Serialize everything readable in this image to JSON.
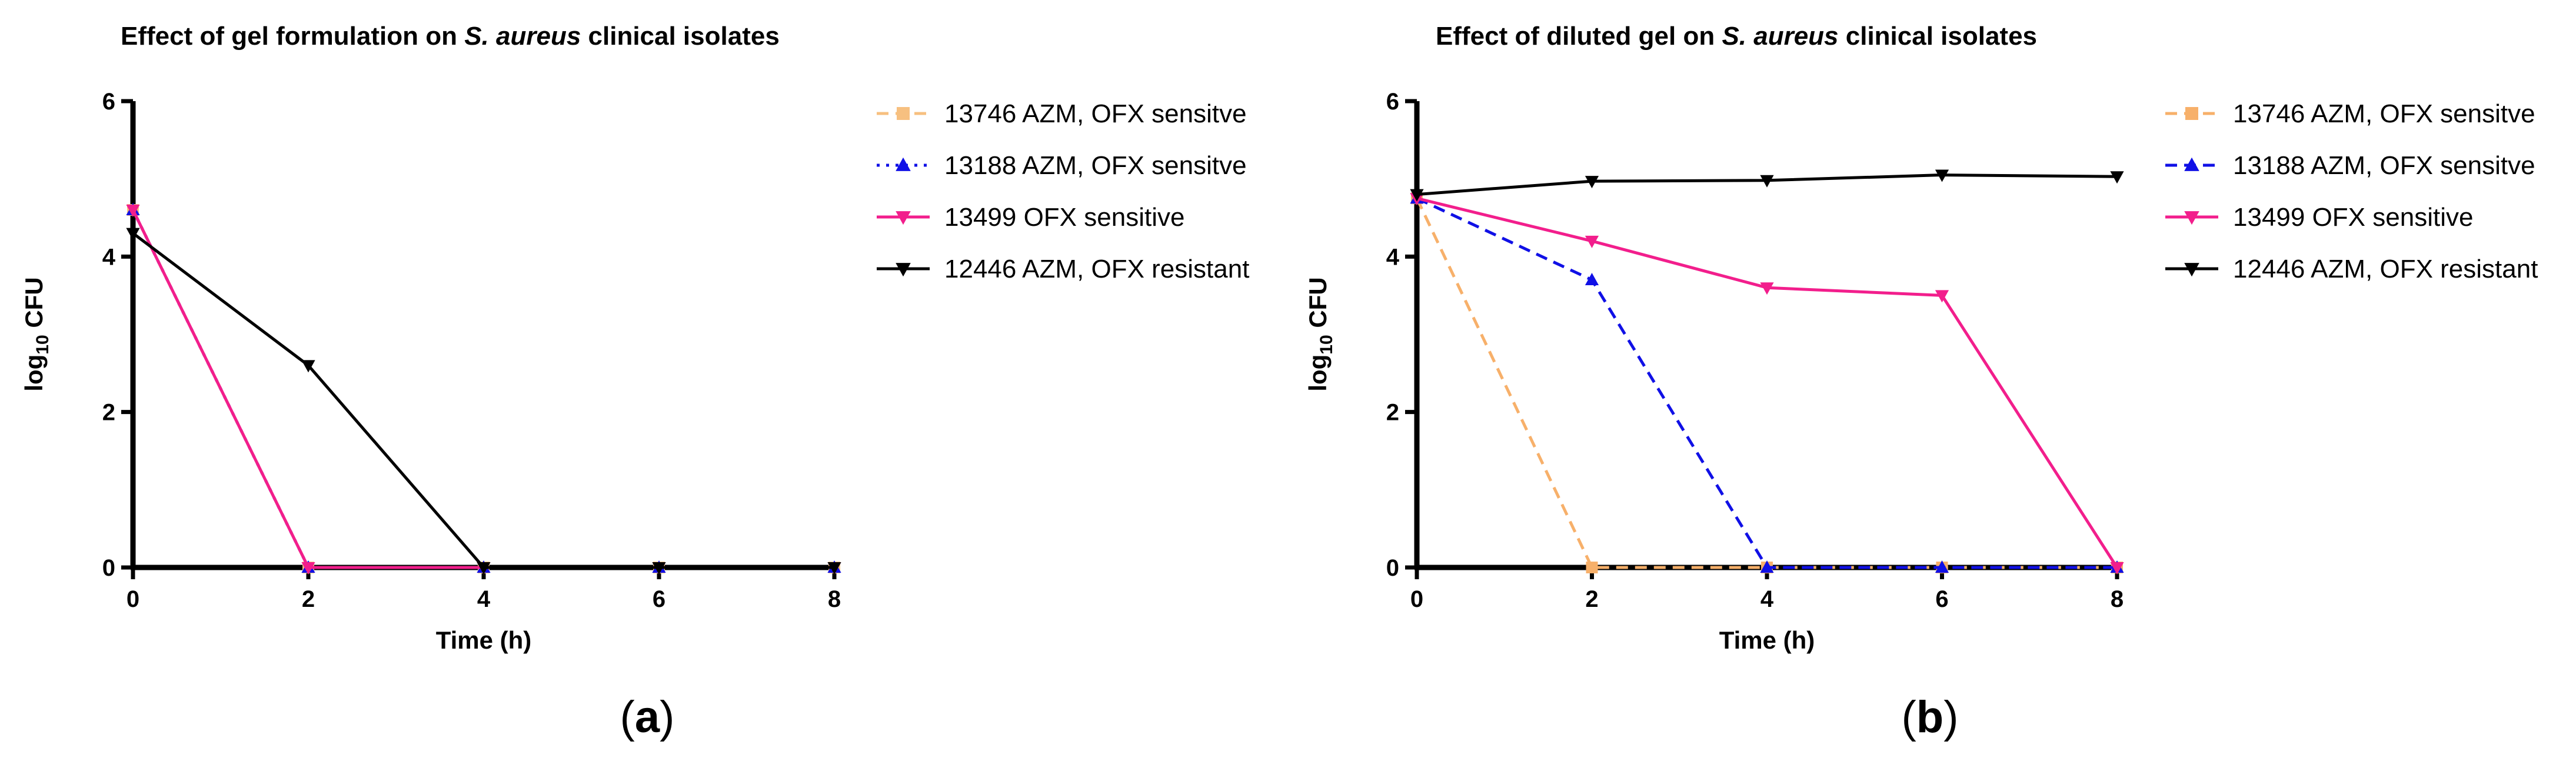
{
  "chart_data": [
    {
      "type": "line",
      "title_prefix": "Effect of gel formulation on ",
      "title_species": "S. aureus",
      "title_suffix": " clinical isolates",
      "xlabel": "Time (h)",
      "ylabel_main": "log",
      "ylabel_sub": "10",
      "ylabel_tail": " CFU",
      "xlim": [
        0,
        8
      ],
      "ylim": [
        0,
        6
      ],
      "xticks": [
        0,
        2,
        4,
        6,
        8
      ],
      "yticks": [
        0,
        2,
        4,
        6
      ],
      "legend_position": "right",
      "caption": "a",
      "series": [
        {
          "name": "13746 AZM, OFX sensitve",
          "color": "#F7C080",
          "marker": "square",
          "dash": "dash",
          "x": [
            0,
            2,
            4,
            6,
            8
          ],
          "y": [
            4.6,
            0,
            0,
            0,
            0
          ]
        },
        {
          "name": "13188 AZM, OFX sensitve",
          "color": "#1010E6",
          "marker": "triangle-up",
          "dash": "dot",
          "x": [
            0,
            2,
            4,
            6,
            8
          ],
          "y": [
            4.6,
            0,
            0,
            0,
            0
          ]
        },
        {
          "name": "13499 OFX sensitive",
          "color": "#F21E8C",
          "marker": "triangle-down",
          "dash": "solid",
          "x": [
            0,
            2,
            4,
            6,
            8
          ],
          "y": [
            4.6,
            0,
            0,
            0,
            0
          ]
        },
        {
          "name": "12446 AZM, OFX resistant",
          "color": "#000000",
          "marker": "triangle-down",
          "dash": "solid",
          "x": [
            0,
            2,
            4,
            6,
            8
          ],
          "y": [
            4.3,
            2.6,
            0,
            0,
            0
          ]
        }
      ]
    },
    {
      "type": "line",
      "title_prefix": "Effect of diluted gel on ",
      "title_species": "S. aureus",
      "title_suffix": " clinical isolates",
      "xlabel": "Time (h)",
      "ylabel_main": "log",
      "ylabel_sub": "10",
      "ylabel_tail": " CFU",
      "xlim": [
        0,
        8
      ],
      "ylim": [
        0,
        6
      ],
      "xticks": [
        0,
        2,
        4,
        6,
        8
      ],
      "yticks": [
        0,
        2,
        4,
        6
      ],
      "legend_position": "right",
      "caption": "b",
      "series": [
        {
          "name": "13746 AZM, OFX sensitve",
          "color": "#F7B06A",
          "marker": "square",
          "dash": "dash",
          "x": [
            0,
            2,
            4,
            6,
            8
          ],
          "y": [
            4.75,
            0,
            0,
            0,
            0
          ]
        },
        {
          "name": "13188 AZM, OFX sensitve",
          "color": "#1010E6",
          "marker": "triangle-up",
          "dash": "dash",
          "x": [
            0,
            2,
            4,
            6,
            8
          ],
          "y": [
            4.75,
            3.7,
            0,
            0,
            0
          ]
        },
        {
          "name": "13499 OFX sensitive",
          "color": "#F21E8C",
          "marker": "triangle-down",
          "dash": "solid",
          "x": [
            0,
            2,
            4,
            6,
            8
          ],
          "y": [
            4.75,
            4.2,
            3.6,
            3.5,
            0
          ]
        },
        {
          "name": "12446 AZM, OFX resistant",
          "color": "#000000",
          "marker": "triangle-down",
          "dash": "solid",
          "x": [
            0,
            2,
            4,
            6,
            8
          ],
          "y": [
            4.8,
            4.97,
            4.98,
            5.05,
            5.03
          ]
        }
      ]
    }
  ]
}
